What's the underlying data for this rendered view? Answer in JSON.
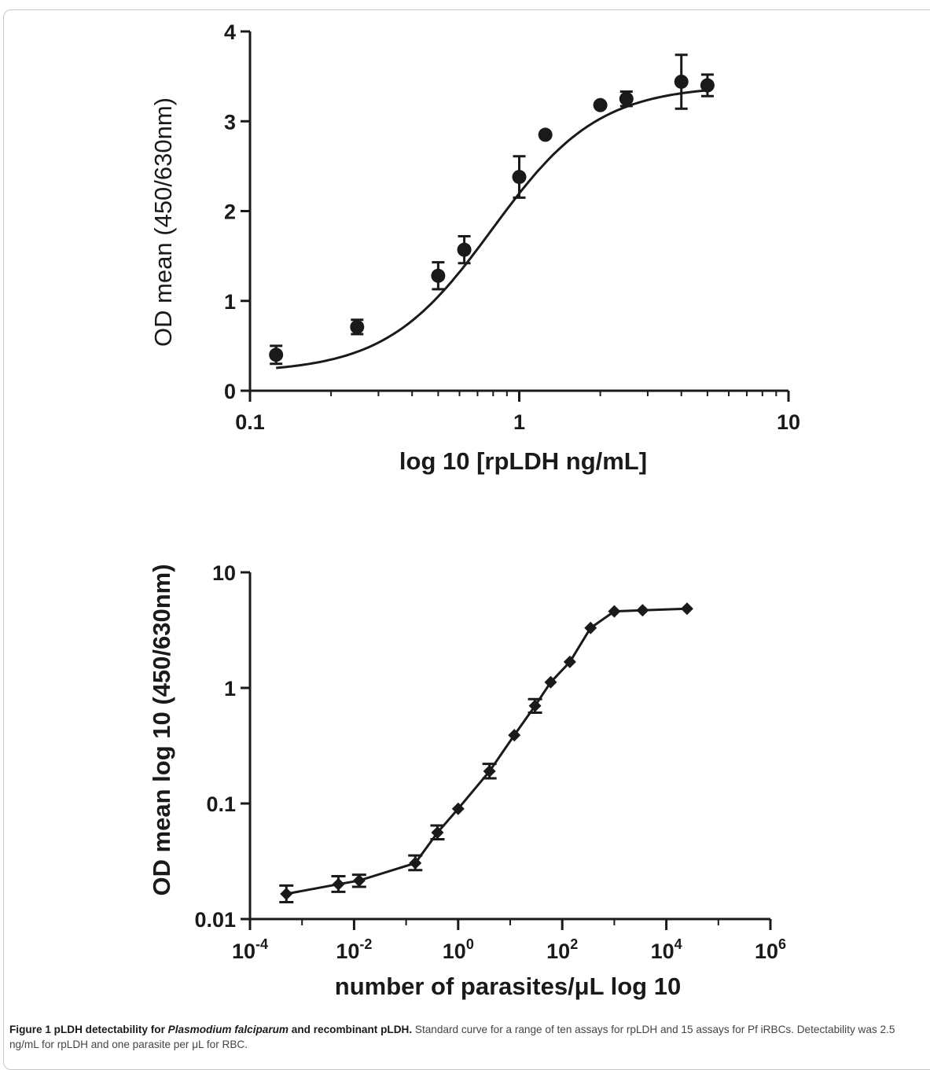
{
  "caption": {
    "label": "Figure 1",
    "title_pre": " pLDH detectability for ",
    "title_italic": "Plasmodium falciparum",
    "title_post": " and recombinant pLDH.",
    "text": " Standard curve for a range of ten assays for rpLDH and 15 assays for Pf iRBCs. Detectability was 2.5 ng/mL for rpLDH and one parasite per μL for RBC."
  },
  "chart_data": [
    {
      "type": "scatter",
      "xscale": "log",
      "xlim": [
        0.1,
        10
      ],
      "ylim": [
        0,
        4
      ],
      "xticks": [
        {
          "v": 0.1,
          "label": "0.1"
        },
        {
          "v": 1,
          "label": "1"
        },
        {
          "v": 10,
          "label": "10"
        }
      ],
      "yticks": [
        {
          "v": 0,
          "label": "0"
        },
        {
          "v": 1,
          "label": "1"
        },
        {
          "v": 2,
          "label": "2"
        },
        {
          "v": 3,
          "label": "3"
        },
        {
          "v": 4,
          "label": "4"
        }
      ],
      "xlabel": "log 10 [rpLDH ng/mL]",
      "ylabel": "OD mean (450/630nm)",
      "marker": "circle",
      "fit": "sigmoidal",
      "points": [
        {
          "x": 0.125,
          "y": 0.4,
          "err": 0.1
        },
        {
          "x": 0.25,
          "y": 0.71,
          "err": 0.08
        },
        {
          "x": 0.5,
          "y": 1.28,
          "err": 0.15
        },
        {
          "x": 0.625,
          "y": 1.57,
          "err": 0.15
        },
        {
          "x": 1.0,
          "y": 2.38,
          "err": 0.23
        },
        {
          "x": 1.25,
          "y": 2.85,
          "err": 0.0
        },
        {
          "x": 2.0,
          "y": 3.18,
          "err": 0.0
        },
        {
          "x": 2.5,
          "y": 3.25,
          "err": 0.08
        },
        {
          "x": 4.0,
          "y": 3.44,
          "err": 0.3
        },
        {
          "x": 5.0,
          "y": 3.4,
          "err": 0.12
        }
      ],
      "curve": {
        "bottom": 0.2,
        "top": 3.4,
        "logec50": -0.1,
        "hill": 2.2
      }
    },
    {
      "type": "line",
      "xscale": "log",
      "yscale": "log",
      "xlim": [
        0.0001,
        1000000
      ],
      "ylim": [
        0.01,
        10
      ],
      "xticks": [
        {
          "v": 0.0001,
          "base": "10",
          "exp": "-4"
        },
        {
          "v": 0.01,
          "base": "10",
          "exp": "-2"
        },
        {
          "v": 1,
          "base": "10",
          "exp": "0"
        },
        {
          "v": 100,
          "base": "10",
          "exp": "2"
        },
        {
          "v": 10000,
          "base": "10",
          "exp": "4"
        },
        {
          "v": 1000000,
          "base": "10",
          "exp": "6"
        }
      ],
      "yticks": [
        {
          "v": 0.01,
          "label": "0.01"
        },
        {
          "v": 0.1,
          "label": "0.1"
        },
        {
          "v": 1,
          "label": "1"
        },
        {
          "v": 10,
          "label": "10"
        }
      ],
      "xlabel": "number of parasites/μL log 10",
      "ylabel": "OD mean log 10 (450/630nm)",
      "marker": "diamond",
      "points": [
        {
          "x": 0.0005,
          "y": 0.0165,
          "lo": 0.014,
          "hi": 0.0195
        },
        {
          "x": 0.005,
          "y": 0.02,
          "lo": 0.0172,
          "hi": 0.0235
        },
        {
          "x": 0.0125,
          "y": 0.0215,
          "lo": 0.019,
          "hi": 0.0242
        },
        {
          "x": 0.15,
          "y": 0.0305,
          "lo": 0.0265,
          "hi": 0.0355
        },
        {
          "x": 0.4,
          "y": 0.056,
          "lo": 0.049,
          "hi": 0.0645
        },
        {
          "x": 1.0,
          "y": 0.09,
          "lo": 0.09,
          "hi": 0.09
        },
        {
          "x": 4.0,
          "y": 0.19,
          "lo": 0.165,
          "hi": 0.22
        },
        {
          "x": 12.0,
          "y": 0.39,
          "lo": 0.39,
          "hi": 0.39
        },
        {
          "x": 30.0,
          "y": 0.7,
          "lo": 0.61,
          "hi": 0.8
        },
        {
          "x": 60.0,
          "y": 1.12,
          "lo": 1.12,
          "hi": 1.12
        },
        {
          "x": 140.0,
          "y": 1.68,
          "lo": 1.68,
          "hi": 1.68
        },
        {
          "x": 350.0,
          "y": 3.3,
          "lo": 3.3,
          "hi": 3.3
        },
        {
          "x": 1000.0,
          "y": 4.6,
          "lo": 4.6,
          "hi": 4.6
        },
        {
          "x": 3500.0,
          "y": 4.7,
          "lo": 4.7,
          "hi": 4.7
        },
        {
          "x": 25000.0,
          "y": 4.85,
          "lo": 4.85,
          "hi": 4.85
        }
      ]
    }
  ]
}
